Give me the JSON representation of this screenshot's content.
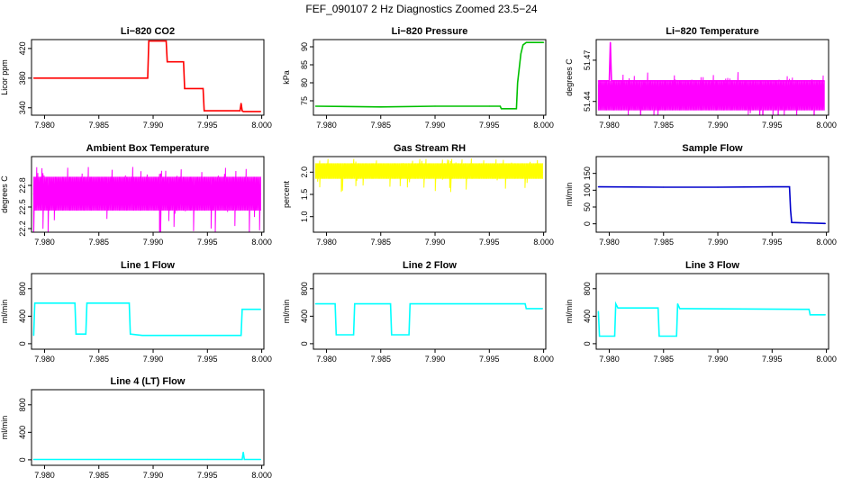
{
  "figure_title": "FEF_090107  2 Hz Diagnostics Zoomed 23.5−24",
  "colors": {
    "red": "#ff0000",
    "green": "#00c000",
    "magenta": "#ff00ff",
    "yellow": "#ffff00",
    "blue": "#0000cc",
    "cyan": "#00ffff"
  },
  "chart_data": [
    {
      "type": "line",
      "title": "Li−820 CO2",
      "ylabel": "Licor ppm",
      "color": "#ff0000",
      "xlim": [
        7.9788,
        8.0002
      ],
      "ylim": [
        330,
        432
      ],
      "xticks": [
        7.98,
        7.985,
        7.99,
        7.995,
        8.0
      ],
      "xtick_labels": [
        "7.980",
        "7.985",
        "7.990",
        "7.995",
        "8.000"
      ],
      "yticks": [
        340,
        380,
        420
      ],
      "ytick_labels": [
        "340",
        "380",
        "420"
      ],
      "x": [
        7.979,
        7.9895,
        7.9896,
        7.9912,
        7.9913,
        7.9928,
        7.9929,
        7.9946,
        7.9947,
        7.998,
        7.9981,
        7.9982,
        7.9983,
        7.9999
      ],
      "y": [
        380,
        380,
        430,
        430,
        402,
        402,
        366,
        366,
        336,
        336,
        346,
        336,
        335,
        335
      ]
    },
    {
      "type": "line",
      "title": "Li−820 Pressure",
      "ylabel": "kPa",
      "color": "#00c000",
      "xlim": [
        7.9788,
        8.0002
      ],
      "ylim": [
        71,
        92
      ],
      "xticks": [
        7.98,
        7.985,
        7.99,
        7.995,
        8.0
      ],
      "xtick_labels": [
        "7.980",
        "7.985",
        "7.990",
        "7.995",
        "8.000"
      ],
      "yticks": [
        75,
        80,
        85,
        90
      ],
      "ytick_labels": [
        "75",
        "80",
        "85",
        "90"
      ],
      "x": [
        7.979,
        7.985,
        7.99,
        7.995,
        7.996,
        7.9961,
        7.9975,
        7.9976,
        7.9979,
        7.9981,
        7.9984,
        8.0
      ],
      "y": [
        73.5,
        73.3,
        73.5,
        73.5,
        73.5,
        72.8,
        72.8,
        80,
        88,
        90.5,
        91.2,
        91.2
      ]
    },
    {
      "type": "line",
      "title": "Li−820 Temperature",
      "ylabel": "degrees C",
      "color": "#ff00ff",
      "xlim": [
        7.9788,
        8.0002
      ],
      "ylim": [
        51.43,
        51.485
      ],
      "xticks": [
        7.98,
        7.985,
        7.99,
        7.995,
        8.0
      ],
      "xtick_labels": [
        "7.980",
        "7.985",
        "7.990",
        "7.995",
        "8.000"
      ],
      "yticks": [
        51.44,
        51.47
      ],
      "ytick_labels": [
        "51.44",
        "51.47"
      ],
      "x": [
        7.979,
        7.98,
        7.9801,
        7.9802,
        7.985,
        7.99,
        7.995,
        7.9998
      ],
      "y": [
        51.455,
        51.455,
        51.483,
        51.455,
        51.455,
        51.455,
        51.455,
        51.455
      ],
      "band": {
        "low": 51.4335,
        "high": 51.455
      }
    },
    {
      "type": "line",
      "title": "Ambient Box Temperature",
      "ylabel": "degrees C",
      "color": "#ff00ff",
      "xlim": [
        7.9788,
        8.0002
      ],
      "ylim": [
        22.15,
        23.2
      ],
      "xticks": [
        7.98,
        7.985,
        7.99,
        7.995,
        8.0
      ],
      "xtick_labels": [
        "7.980",
        "7.985",
        "7.990",
        "7.995",
        "8.000"
      ],
      "yticks": [
        22.2,
        22.5,
        22.8
      ],
      "ytick_labels": [
        "22.2",
        "22.5",
        "22.8"
      ],
      "x": [
        7.979,
        7.985,
        7.99,
        7.995,
        7.9999
      ],
      "y": [
        22.68,
        22.68,
        22.68,
        22.68,
        22.68
      ],
      "band": {
        "low": 22.45,
        "high": 22.92
      }
    },
    {
      "type": "line",
      "title": "Gas Stream RH",
      "ylabel": "percent",
      "color": "#ffff00",
      "xlim": [
        7.9788,
        8.0002
      ],
      "ylim": [
        0.65,
        2.35
      ],
      "xticks": [
        7.98,
        7.985,
        7.99,
        7.995,
        8.0
      ],
      "xtick_labels": [
        "7.980",
        "7.985",
        "7.990",
        "7.995",
        "8.000"
      ],
      "yticks": [
        1.0,
        1.5,
        2.0
      ],
      "ytick_labels": [
        "1.0",
        "1.5",
        "2.0"
      ],
      "x": [
        7.979,
        7.985,
        7.99,
        7.995,
        7.9999
      ],
      "y": [
        2.0,
        2.0,
        2.0,
        2.0,
        2.0
      ],
      "band": {
        "low": 1.85,
        "high": 2.2
      }
    },
    {
      "type": "line",
      "title": "Sample Flow",
      "ylabel": "ml/min",
      "color": "#0000cc",
      "xlim": [
        7.9788,
        8.0002
      ],
      "ylim": [
        -25,
        200
      ],
      "xticks": [
        7.98,
        7.985,
        7.99,
        7.995,
        8.0
      ],
      "xtick_labels": [
        "7.980",
        "7.985",
        "7.990",
        "7.995",
        "8.000"
      ],
      "yticks": [
        0,
        50,
        100,
        150
      ],
      "ytick_labels": [
        "0",
        "50",
        "100",
        "150"
      ],
      "x": [
        7.979,
        7.985,
        7.99,
        7.995,
        7.9966,
        7.9967,
        7.9968,
        7.9999
      ],
      "y": [
        110,
        109,
        109,
        110,
        110,
        40,
        4,
        1
      ]
    },
    {
      "type": "line",
      "title": "Line 1 Flow",
      "ylabel": "ml/min",
      "color": "#00ffff",
      "xlim": [
        7.9788,
        8.0002
      ],
      "ylim": [
        -80,
        1020
      ],
      "xticks": [
        7.98,
        7.985,
        7.99,
        7.995,
        8.0
      ],
      "xtick_labels": [
        "7.980",
        "7.985",
        "7.990",
        "7.995",
        "8.000"
      ],
      "yticks": [
        0,
        400,
        800
      ],
      "ytick_labels": [
        "0",
        "400",
        "800"
      ],
      "x": [
        7.979,
        7.9791,
        7.9828,
        7.9829,
        7.9838,
        7.9839,
        7.9878,
        7.9879,
        7.989,
        7.9981,
        7.9982,
        7.9999
      ],
      "y": [
        120,
        590,
        590,
        140,
        140,
        590,
        590,
        140,
        120,
        120,
        500,
        500
      ]
    },
    {
      "type": "line",
      "title": "Line 2 Flow",
      "ylabel": "ml/min",
      "color": "#00ffff",
      "xlim": [
        7.9788,
        8.0002
      ],
      "ylim": [
        -80,
        1020
      ],
      "xticks": [
        7.98,
        7.985,
        7.99,
        7.995,
        8.0
      ],
      "xtick_labels": [
        "7.980",
        "7.985",
        "7.990",
        "7.995",
        "8.000"
      ],
      "yticks": [
        0,
        400,
        800
      ],
      "ytick_labels": [
        "0",
        "400",
        "800"
      ],
      "x": [
        7.979,
        7.9808,
        7.9809,
        7.9825,
        7.9826,
        7.9859,
        7.986,
        7.9876,
        7.9877,
        7.9983,
        7.9984,
        7.9999
      ],
      "y": [
        580,
        580,
        130,
        130,
        580,
        580,
        130,
        130,
        580,
        580,
        510,
        510
      ]
    },
    {
      "type": "line",
      "title": "Line 3 Flow",
      "ylabel": "ml/min",
      "color": "#00ffff",
      "xlim": [
        7.9788,
        8.0002
      ],
      "ylim": [
        -80,
        1020
      ],
      "xticks": [
        7.98,
        7.985,
        7.99,
        7.995,
        8.0
      ],
      "xtick_labels": [
        "7.980",
        "7.985",
        "7.990",
        "7.995",
        "8.000"
      ],
      "yticks": [
        0,
        400,
        800
      ],
      "ytick_labels": [
        "0",
        "400",
        "800"
      ],
      "x": [
        7.979,
        7.9791,
        7.9805,
        7.9806,
        7.9808,
        7.9845,
        7.9846,
        7.9862,
        7.9863,
        7.9865,
        7.9984,
        7.9985,
        7.9999
      ],
      "y": [
        470,
        110,
        110,
        580,
        520,
        520,
        110,
        110,
        580,
        510,
        500,
        420,
        420
      ]
    },
    {
      "type": "line",
      "title": "Line 4 (LT) Flow",
      "ylabel": "ml/min",
      "color": "#00ffff",
      "xlim": [
        7.9788,
        8.0002
      ],
      "ylim": [
        -80,
        1020
      ],
      "xticks": [
        7.98,
        7.985,
        7.99,
        7.995,
        8.0
      ],
      "xtick_labels": [
        "7.980",
        "7.985",
        "7.990",
        "7.995",
        "8.000"
      ],
      "yticks": [
        0,
        400,
        800
      ],
      "ytick_labels": [
        "0",
        "400",
        "800"
      ],
      "x": [
        7.979,
        7.985,
        7.99,
        7.995,
        7.9982,
        7.9983,
        7.9984,
        7.9999
      ],
      "y": [
        5,
        5,
        5,
        5,
        5,
        110,
        5,
        5
      ]
    }
  ]
}
